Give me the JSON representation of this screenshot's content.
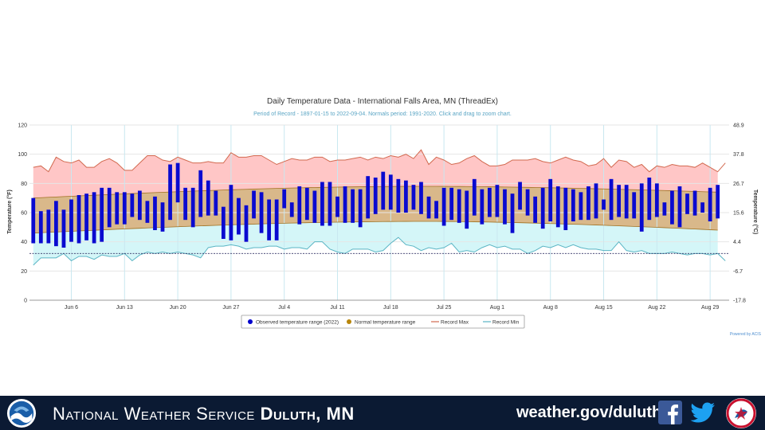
{
  "chart_data": {
    "type": "bar",
    "title": "Daily Temperature Data - International Falls Area, MN (ThreadEx)",
    "subtitle": "Period of Record - 1897-01-15 to 2022-09-04. Normals period: 1991-2020. Click and drag to zoom chart.",
    "ylabel": "Temperature (°F)",
    "y2label": "Temperature (°C)",
    "ylim": [
      0,
      120
    ],
    "yticks": [
      0,
      20,
      40,
      60,
      80,
      100,
      120
    ],
    "y2ticks": [
      "-17.8",
      "-6.7",
      "4.4",
      "15.6",
      "26.7",
      "37.8",
      "48.9"
    ],
    "x_start": "Jun 1",
    "x_end": "Sep 1",
    "xticks": [
      {
        "label": "Jun 6",
        "day": 5
      },
      {
        "label": "Jun 13",
        "day": 12
      },
      {
        "label": "Jun 20",
        "day": 19
      },
      {
        "label": "Jun 27",
        "day": 26
      },
      {
        "label": "Jul 4",
        "day": 33
      },
      {
        "label": "Jul 11",
        "day": 40
      },
      {
        "label": "Jul 18",
        "day": 47
      },
      {
        "label": "Jul 25",
        "day": 54
      },
      {
        "label": "Aug 1",
        "day": 61
      },
      {
        "label": "Aug 8",
        "day": 68
      },
      {
        "label": "Aug 15",
        "day": 75
      },
      {
        "label": "Aug 22",
        "day": 82
      },
      {
        "label": "Aug 29",
        "day": 89
      }
    ],
    "grid": true,
    "legend_position": "bottom-center",
    "legend": [
      {
        "label": "Observed temperature range (2022)",
        "color": "#0000cc",
        "symbol": "dot"
      },
      {
        "label": "Normal temperature range",
        "color": "#b8860b",
        "symbol": "dot"
      },
      {
        "label": "Record Max",
        "color": "#d2694f",
        "symbol": "line"
      },
      {
        "label": "Record Min",
        "color": "#5bb5c4",
        "symbol": "line"
      }
    ],
    "credit": "Powered by ACIS",
    "colors": {
      "observed": "#0a0ad0",
      "normal_fill": "#d9b88a",
      "normal_line": "#a07020",
      "record_max_fill": "#ffc6c6",
      "record_max_line": "#d2694f",
      "record_min_fill": "#d4f6f8",
      "record_min_line": "#5bb5c4",
      "freezing_line": "#333366"
    },
    "freezing_line_f": 32,
    "normal_high": {
      "start": 70,
      "peak": 78,
      "end": 74
    },
    "normal_low": {
      "start": 46,
      "peak": 54,
      "end": 48
    },
    "record_max": [
      91,
      92,
      88,
      98,
      95,
      94,
      96,
      91,
      91,
      95,
      97,
      94,
      89,
      89,
      94,
      99,
      99,
      96,
      95,
      98,
      96,
      94,
      94,
      95,
      94,
      94,
      101,
      98,
      98,
      99,
      99,
      96,
      93,
      95,
      97,
      96,
      96,
      98,
      98,
      95,
      96,
      96,
      97,
      98,
      96,
      98,
      97,
      99,
      98,
      100,
      97,
      103,
      93,
      98,
      96,
      93,
      94,
      97,
      99,
      95,
      92,
      92,
      93,
      96,
      96,
      96,
      97,
      95,
      94,
      96,
      98,
      96,
      95,
      92,
      93,
      97,
      91,
      96,
      95,
      91,
      93,
      88,
      92,
      91,
      93,
      92,
      92,
      91,
      94,
      91,
      88,
      94
    ],
    "record_min": [
      24,
      29,
      29,
      29,
      32,
      27,
      30,
      30,
      28,
      31,
      30,
      30,
      32,
      27,
      31,
      33,
      32,
      33,
      32,
      33,
      32,
      31,
      29,
      36,
      37,
      37,
      38,
      37,
      35,
      36,
      36,
      37,
      37,
      35,
      36,
      36,
      35,
      40,
      40,
      35,
      33,
      32,
      35,
      35,
      35,
      33,
      34,
      39,
      43,
      38,
      37,
      34,
      36,
      35,
      36,
      39,
      33,
      34,
      33,
      36,
      38,
      36,
      37,
      35,
      35,
      32,
      34,
      37,
      36,
      38,
      36,
      38,
      36,
      35,
      35,
      34,
      34,
      40,
      34,
      33,
      34,
      32,
      32,
      32,
      33,
      32,
      31,
      32,
      32,
      31,
      32,
      27
    ],
    "observed": [
      {
        "lo": 39,
        "hi": 70
      },
      {
        "lo": 39,
        "hi": 61
      },
      {
        "lo": 39,
        "hi": 62
      },
      {
        "lo": 37,
        "hi": 68
      },
      {
        "lo": 36,
        "hi": 62
      },
      {
        "lo": 40,
        "hi": 69
      },
      {
        "lo": 39,
        "hi": 72
      },
      {
        "lo": 41,
        "hi": 73
      },
      {
        "lo": 39,
        "hi": 74
      },
      {
        "lo": 40,
        "hi": 77
      },
      {
        "lo": 50,
        "hi": 77
      },
      {
        "lo": 52,
        "hi": 74
      },
      {
        "lo": 52,
        "hi": 74
      },
      {
        "lo": 57,
        "hi": 73
      },
      {
        "lo": 55,
        "hi": 75
      },
      {
        "lo": 53,
        "hi": 68
      },
      {
        "lo": 48,
        "hi": 71
      },
      {
        "lo": 47,
        "hi": 67
      },
      {
        "lo": 55,
        "hi": 93
      },
      {
        "lo": 67,
        "hi": 94
      },
      {
        "lo": 55,
        "hi": 77
      },
      {
        "lo": 50,
        "hi": 77
      },
      {
        "lo": 57,
        "hi": 89
      },
      {
        "lo": 58,
        "hi": 82
      },
      {
        "lo": 58,
        "hi": 75
      },
      {
        "lo": 42,
        "hi": 64
      },
      {
        "lo": 41,
        "hi": 79
      },
      {
        "lo": 45,
        "hi": 70
      },
      {
        "lo": 40,
        "hi": 65
      },
      {
        "lo": 56,
        "hi": 75
      },
      {
        "lo": 46,
        "hi": 74
      },
      {
        "lo": 41,
        "hi": 69
      },
      {
        "lo": 41,
        "hi": 69
      },
      {
        "lo": 63,
        "hi": 76
      },
      {
        "lo": 57,
        "hi": 67
      },
      {
        "lo": 52,
        "hi": 78
      },
      {
        "lo": 55,
        "hi": 77
      },
      {
        "lo": 53,
        "hi": 75
      },
      {
        "lo": 51,
        "hi": 81
      },
      {
        "lo": 51,
        "hi": 81
      },
      {
        "lo": 57,
        "hi": 71
      },
      {
        "lo": 53,
        "hi": 78
      },
      {
        "lo": 53,
        "hi": 76
      },
      {
        "lo": 50,
        "hi": 76
      },
      {
        "lo": 56,
        "hi": 85
      },
      {
        "lo": 59,
        "hi": 84
      },
      {
        "lo": 62,
        "hi": 88
      },
      {
        "lo": 62,
        "hi": 86
      },
      {
        "lo": 60,
        "hi": 83
      },
      {
        "lo": 60,
        "hi": 82
      },
      {
        "lo": 62,
        "hi": 79
      },
      {
        "lo": 59,
        "hi": 81
      },
      {
        "lo": 56,
        "hi": 71
      },
      {
        "lo": 56,
        "hi": 68
      },
      {
        "lo": 51,
        "hi": 77
      },
      {
        "lo": 55,
        "hi": 77
      },
      {
        "lo": 53,
        "hi": 76
      },
      {
        "lo": 49,
        "hi": 75
      },
      {
        "lo": 58,
        "hi": 83
      },
      {
        "lo": 52,
        "hi": 76
      },
      {
        "lo": 57,
        "hi": 77
      },
      {
        "lo": 57,
        "hi": 79
      },
      {
        "lo": 52,
        "hi": 76
      },
      {
        "lo": 46,
        "hi": 73
      },
      {
        "lo": 62,
        "hi": 81
      },
      {
        "lo": 58,
        "hi": 76
      },
      {
        "lo": 53,
        "hi": 71
      },
      {
        "lo": 49,
        "hi": 77
      },
      {
        "lo": 54,
        "hi": 83
      },
      {
        "lo": 50,
        "hi": 78
      },
      {
        "lo": 48,
        "hi": 77
      },
      {
        "lo": 54,
        "hi": 76
      },
      {
        "lo": 55,
        "hi": 74
      },
      {
        "lo": 55,
        "hi": 78
      },
      {
        "lo": 56,
        "hi": 80
      },
      {
        "lo": 62,
        "hi": 69
      },
      {
        "lo": 55,
        "hi": 83
      },
      {
        "lo": 57,
        "hi": 79
      },
      {
        "lo": 56,
        "hi": 79
      },
      {
        "lo": 56,
        "hi": 74
      },
      {
        "lo": 47,
        "hi": 80
      },
      {
        "lo": 55,
        "hi": 84
      },
      {
        "lo": 57,
        "hi": 80
      },
      {
        "lo": 58,
        "hi": 67
      },
      {
        "lo": 52,
        "hi": 75
      },
      {
        "lo": 50,
        "hi": 78
      },
      {
        "lo": 59,
        "hi": 73
      },
      {
        "lo": 58,
        "hi": 75
      },
      {
        "lo": 60,
        "hi": 67
      },
      {
        "lo": 54,
        "hi": 77
      },
      {
        "lo": 56,
        "hi": 79
      }
    ]
  },
  "footer": {
    "nws_prefix": "National Weather Service",
    "office": "Duluth, MN",
    "url": "weather.gov/duluth",
    "facebook_icon": "facebook-f-icon",
    "twitter_icon": "twitter-bird-icon"
  },
  "colors": {
    "footer_bg": "#0b1a33",
    "facebook": "#3b5998",
    "twitter": "#1da1f2"
  }
}
